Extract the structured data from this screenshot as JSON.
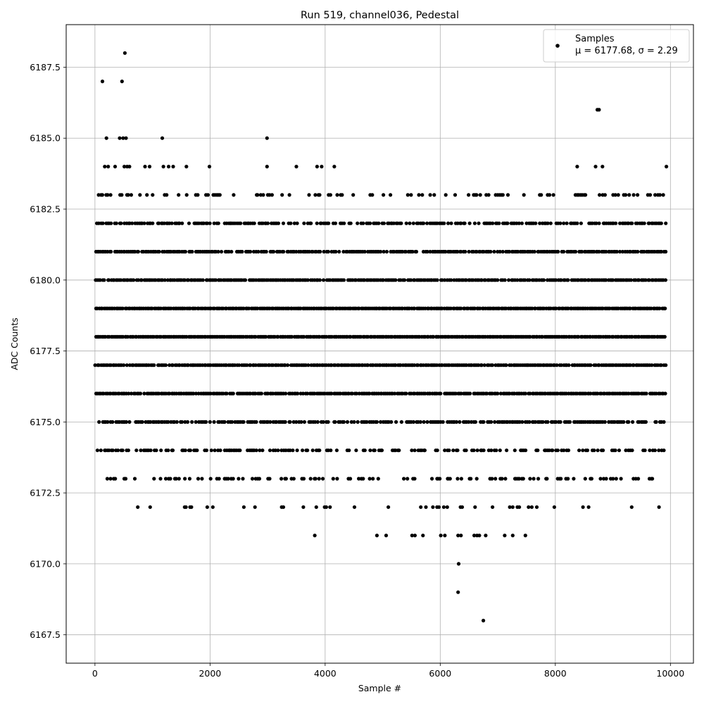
{
  "chart_data": {
    "type": "scatter",
    "title": "Run 519, channel036, Pedestal",
    "xlabel": "Sample #",
    "ylabel": "ADC Counts",
    "xlim": [
      -500,
      10400
    ],
    "ylim": [
      6166.5,
      6189.0
    ],
    "xticks": [
      0,
      2000,
      4000,
      6000,
      8000,
      10000
    ],
    "yticks": [
      6167.5,
      6170.0,
      6172.5,
      6175.0,
      6177.5,
      6180.0,
      6182.5,
      6185.0,
      6187.5
    ],
    "xtick_labels": [
      "0",
      "2000",
      "4000",
      "6000",
      "8000",
      "10000"
    ],
    "ytick_labels": [
      "6167.5",
      "6170.0",
      "6172.5",
      "6175.0",
      "6177.5",
      "6180.0",
      "6182.5",
      "6185.0",
      "6187.5"
    ],
    "grid": true,
    "marker_color": "#000000",
    "legend": {
      "position": "upper right",
      "series_label": "Samples",
      "stats_label": "μ = 6177.68, σ = 2.29"
    },
    "n_samples": 10000,
    "mean": 6177.68,
    "sigma": 2.29,
    "level_ranges": {
      "6176": [
        [
          0,
          9920
        ]
      ],
      "6177": [
        [
          0,
          9920
        ]
      ],
      "6178": [
        [
          0,
          9920
        ]
      ],
      "6179": [
        [
          0,
          9920
        ]
      ],
      "6180": [
        [
          0,
          9920
        ]
      ],
      "6181": [
        [
          0,
          9920
        ]
      ],
      "6182": [
        [
          0,
          9920
        ]
      ],
      "6175": [
        [
          0,
          9890
        ]
      ],
      "6174": [
        [
          0,
          9870
        ]
      ],
      "6183": [
        [
          0,
          9920
        ]
      ],
      "6173": [
        [
          80,
          9870
        ]
      ],
      "6172": [
        [
          650,
          9820
        ]
      ]
    },
    "sparse_points": [
      {
        "x": 130,
        "y": 6187
      },
      {
        "x": 470,
        "y": 6187
      },
      {
        "x": 520,
        "y": 6188
      },
      {
        "x": 200,
        "y": 6185
      },
      {
        "x": 430,
        "y": 6185
      },
      {
        "x": 490,
        "y": 6185
      },
      {
        "x": 540,
        "y": 6185
      },
      {
        "x": 1170,
        "y": 6185
      },
      {
        "x": 2990,
        "y": 6185
      },
      {
        "x": 8730,
        "y": 6186
      },
      {
        "x": 8760,
        "y": 6186
      },
      {
        "x": 170,
        "y": 6184
      },
      {
        "x": 230,
        "y": 6184
      },
      {
        "x": 350,
        "y": 6184
      },
      {
        "x": 510,
        "y": 6184
      },
      {
        "x": 560,
        "y": 6184
      },
      {
        "x": 600,
        "y": 6184
      },
      {
        "x": 870,
        "y": 6184
      },
      {
        "x": 950,
        "y": 6184
      },
      {
        "x": 1190,
        "y": 6184
      },
      {
        "x": 1280,
        "y": 6184
      },
      {
        "x": 1360,
        "y": 6184
      },
      {
        "x": 1590,
        "y": 6184
      },
      {
        "x": 1990,
        "y": 6184
      },
      {
        "x": 2990,
        "y": 6184
      },
      {
        "x": 3500,
        "y": 6184
      },
      {
        "x": 3860,
        "y": 6184
      },
      {
        "x": 3940,
        "y": 6184
      },
      {
        "x": 4160,
        "y": 6184
      },
      {
        "x": 8380,
        "y": 6184
      },
      {
        "x": 8700,
        "y": 6184
      },
      {
        "x": 8820,
        "y": 6184
      },
      {
        "x": 9930,
        "y": 6184
      },
      {
        "x": 3820,
        "y": 6171
      },
      {
        "x": 4900,
        "y": 6171
      },
      {
        "x": 5060,
        "y": 6171
      },
      {
        "x": 5510,
        "y": 6171
      },
      {
        "x": 5560,
        "y": 6171
      },
      {
        "x": 5700,
        "y": 6171
      },
      {
        "x": 6010,
        "y": 6171
      },
      {
        "x": 6080,
        "y": 6171
      },
      {
        "x": 6310,
        "y": 6171
      },
      {
        "x": 6360,
        "y": 6171
      },
      {
        "x": 6590,
        "y": 6171
      },
      {
        "x": 6640,
        "y": 6171
      },
      {
        "x": 6680,
        "y": 6171
      },
      {
        "x": 6790,
        "y": 6171
      },
      {
        "x": 7120,
        "y": 6171
      },
      {
        "x": 7260,
        "y": 6171
      },
      {
        "x": 7480,
        "y": 6171
      },
      {
        "x": 6320,
        "y": 6170
      },
      {
        "x": 6310,
        "y": 6169
      },
      {
        "x": 6750,
        "y": 6168
      }
    ]
  }
}
